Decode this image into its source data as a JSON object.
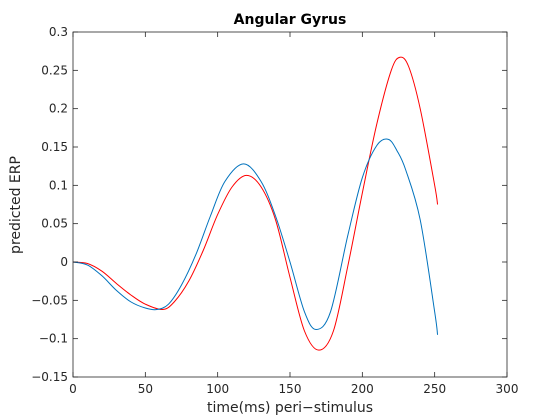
{
  "chart_data": {
    "type": "line",
    "title": "Angular Gyrus",
    "xlabel": "time(ms) peri−stimulus",
    "ylabel": "predicted ERP",
    "xlim": [
      0,
      300
    ],
    "ylim": [
      -0.15,
      0.3
    ],
    "xticks": [
      0,
      50,
      100,
      150,
      200,
      250,
      300
    ],
    "xtick_labels": [
      "0",
      "50",
      "100",
      "150",
      "200",
      "250",
      "300"
    ],
    "yticks": [
      -0.15,
      -0.1,
      -0.05,
      0,
      0.05,
      0.1,
      0.15,
      0.2,
      0.25,
      0.3
    ],
    "ytick_labels": [
      "−0.15",
      "−0.1",
      "−0.05",
      "0",
      "0.05",
      "0.1",
      "0.15",
      "0.2",
      "0.25",
      "0.3"
    ],
    "grid": false,
    "series": [
      {
        "color": "#ff0000",
        "x": [
          0,
          10,
          20,
          30,
          40,
          50,
          62,
          70,
          80,
          90,
          100,
          110,
          120,
          130,
          140,
          150,
          160,
          170,
          180,
          190,
          200,
          210,
          220,
          226,
          232,
          240,
          250,
          252
        ],
        "y": [
          0,
          -0.002,
          -0.012,
          -0.028,
          -0.043,
          -0.055,
          -0.062,
          -0.052,
          -0.025,
          0.015,
          0.062,
          0.098,
          0.113,
          0.098,
          0.055,
          -0.02,
          -0.09,
          -0.115,
          -0.09,
          -0.005,
          0.09,
          0.18,
          0.25,
          0.267,
          0.255,
          0.2,
          0.1,
          0.075
        ]
      },
      {
        "color": "#0072bd",
        "x": [
          0,
          10,
          20,
          30,
          40,
          50,
          58,
          66,
          75,
          85,
          95,
          105,
          118,
          130,
          140,
          150,
          160,
          168,
          178,
          190,
          200,
          210,
          218,
          224,
          230,
          240,
          250,
          252
        ],
        "y": [
          0,
          -0.004,
          -0.018,
          -0.037,
          -0.052,
          -0.06,
          -0.062,
          -0.055,
          -0.03,
          0.01,
          0.06,
          0.105,
          0.128,
          0.105,
          0.06,
          0.0,
          -0.065,
          -0.088,
          -0.065,
          0.035,
          0.11,
          0.152,
          0.16,
          0.145,
          0.12,
          0.055,
          -0.065,
          -0.095
        ]
      }
    ]
  }
}
